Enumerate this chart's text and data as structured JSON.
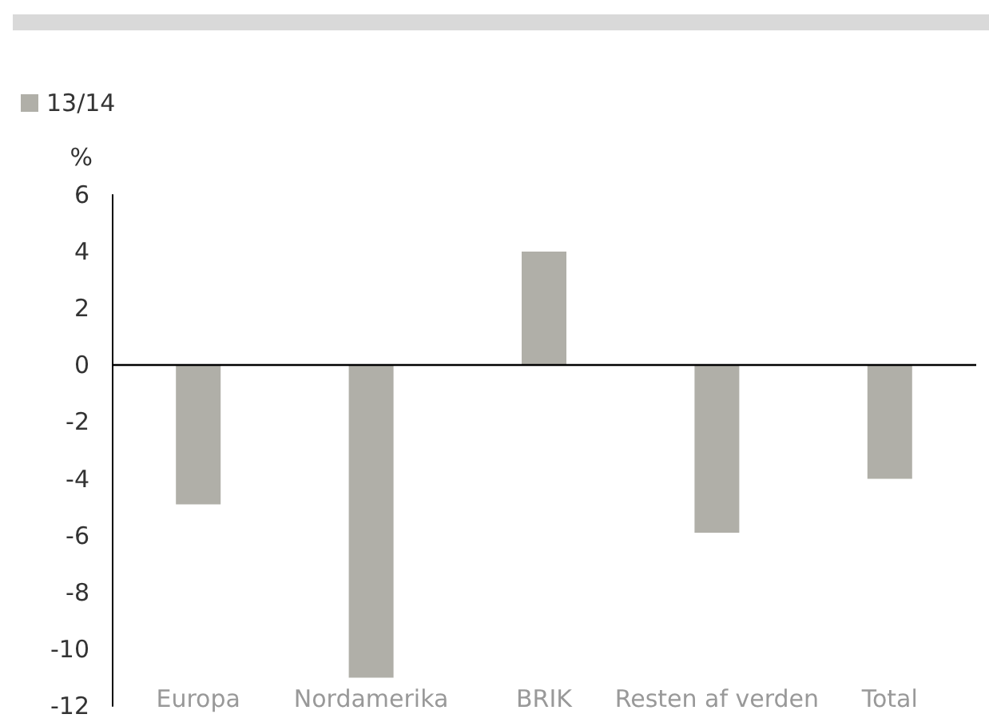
{
  "chart_data": {
    "type": "bar",
    "ylabel": "%",
    "categories": [
      "Europa",
      "Nordamerika",
      "BRIK",
      "Resten af verden",
      "Total"
    ],
    "series": [
      {
        "name": "13/14",
        "color": "#b0afa8",
        "values": [
          -4.9,
          -11,
          4,
          -5.9,
          -4
        ]
      }
    ],
    "ylim": [
      -12,
      6
    ],
    "yticks": [
      -12,
      -10,
      -8,
      -6,
      -4,
      -2,
      0,
      2,
      4,
      6
    ],
    "grid": false,
    "ref_lines": [
      {
        "axis": "y",
        "value": 0,
        "color": "#000000"
      }
    ],
    "legend": "top left"
  }
}
